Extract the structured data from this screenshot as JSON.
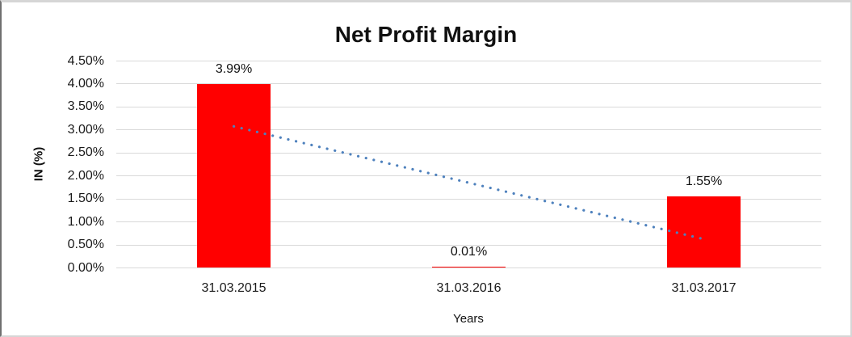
{
  "chart_data": {
    "type": "bar",
    "title": "Net Profit Margin",
    "xlabel": "Years",
    "ylabel": "IN (%)",
    "categories": [
      "31.03.2015",
      "31.03.2016",
      "31.03.2017"
    ],
    "series": [
      {
        "name": "Net Profit Margin",
        "values": [
          3.99,
          0.01,
          1.55
        ]
      }
    ],
    "data_labels": [
      "3.99%",
      "0.01%",
      "1.55%"
    ],
    "y_axis": {
      "min": 0,
      "max": 4.5,
      "step": 0.5,
      "tick_labels": [
        "0.00%",
        "0.50%",
        "1.00%",
        "1.50%",
        "2.00%",
        "2.50%",
        "3.00%",
        "3.50%",
        "4.00%",
        "4.50%"
      ]
    },
    "trendline": {
      "type": "linear",
      "style": "dotted",
      "color": "#4e81bd",
      "start_value": 3.07,
      "end_value": 0.63
    },
    "bar_color": "#ff0000",
    "gridline_color": "#d9d9d9",
    "grid": true,
    "legend": "none"
  }
}
